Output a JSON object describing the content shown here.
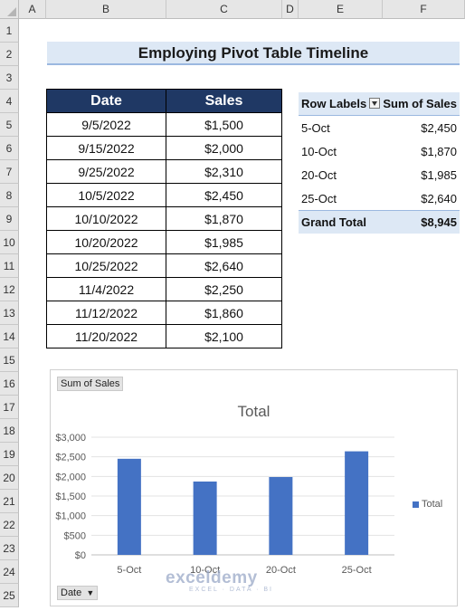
{
  "columns": [
    "A",
    "B",
    "C",
    "D",
    "E",
    "F"
  ],
  "rows": [
    "1",
    "2",
    "3",
    "4",
    "5",
    "6",
    "7",
    "8",
    "9",
    "10",
    "11",
    "12",
    "13",
    "14",
    "15",
    "16",
    "17",
    "18",
    "19",
    "20",
    "21",
    "22",
    "23",
    "24",
    "25"
  ],
  "title": "Employing Pivot Table Timeline",
  "data_table": {
    "headers": [
      "Date",
      "Sales"
    ],
    "rows": [
      [
        "9/5/2022",
        "$1,500"
      ],
      [
        "9/15/2022",
        "$2,000"
      ],
      [
        "9/25/2022",
        "$2,310"
      ],
      [
        "10/5/2022",
        "$2,450"
      ],
      [
        "10/10/2022",
        "$1,870"
      ],
      [
        "10/20/2022",
        "$1,985"
      ],
      [
        "10/25/2022",
        "$2,640"
      ],
      [
        "11/4/2022",
        "$2,250"
      ],
      [
        "11/12/2022",
        "$1,860"
      ],
      [
        "11/20/2022",
        "$2,100"
      ]
    ]
  },
  "pivot": {
    "row_labels_header": "Row Labels",
    "sum_header": "Sum of Sales",
    "rows": [
      {
        "label": "5-Oct",
        "value": "$2,450"
      },
      {
        "label": "10-Oct",
        "value": "$1,870"
      },
      {
        "label": "20-Oct",
        "value": "$1,985"
      },
      {
        "label": "25-Oct",
        "value": "$2,640"
      }
    ],
    "total_label": "Grand Total",
    "total_value": "$8,945"
  },
  "chart": {
    "value_field_button": "Sum of Sales",
    "axis_field_button": "Date"
  },
  "chart_data": {
    "type": "bar",
    "title": "Total",
    "categories": [
      "5-Oct",
      "10-Oct",
      "20-Oct",
      "25-Oct"
    ],
    "series": [
      {
        "name": "Total",
        "values": [
          2450,
          1870,
          1985,
          2640
        ],
        "color": "#4472c4"
      }
    ],
    "ylim": [
      0,
      3000
    ],
    "yticks": [
      0,
      500,
      1000,
      1500,
      2000,
      2500,
      3000
    ],
    "ytick_labels": [
      "$0",
      "$500",
      "$1,000",
      "$1,500",
      "$2,000",
      "$2,500",
      "$3,000"
    ],
    "grid": true,
    "legend": "right"
  },
  "watermark": {
    "name": "exceldemy",
    "tagline": "EXCEL · DATA · BI"
  }
}
